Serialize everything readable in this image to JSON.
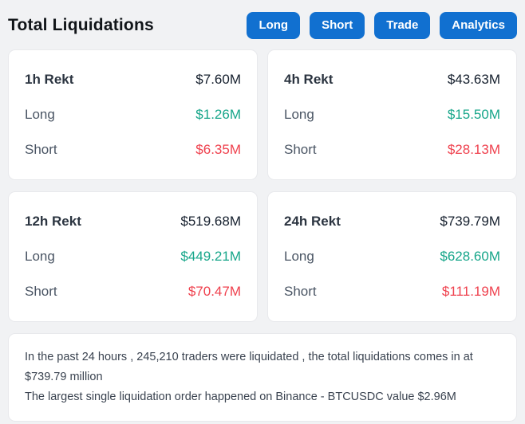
{
  "header": {
    "title": "Total Liquidations",
    "buttons": [
      {
        "label": "Long"
      },
      {
        "label": "Short"
      },
      {
        "label": "Trade"
      },
      {
        "label": "Analytics"
      }
    ]
  },
  "labels": {
    "long": "Long",
    "short": "Short"
  },
  "cards": [
    {
      "period": "1h Rekt",
      "total": "$7.60M",
      "long_value": "$1.26M",
      "short_value": "$6.35M"
    },
    {
      "period": "4h Rekt",
      "total": "$43.63M",
      "long_value": "$15.50M",
      "short_value": "$28.13M"
    },
    {
      "period": "12h Rekt",
      "total": "$519.68M",
      "long_value": "$449.21M",
      "short_value": "$70.47M"
    },
    {
      "period": "24h Rekt",
      "total": "$739.79M",
      "long_value": "$628.60M",
      "short_value": "$111.19M"
    }
  ],
  "summary": {
    "line1": "In the past 24 hours , 245,210 traders were liquidated , the total liquidations comes in at $739.79 million",
    "line2": "The largest single liquidation order happened on Binance - BTCUSDC value $2.96M"
  },
  "colors": {
    "accent_blue": "#1170d0",
    "long_green": "#17a68a",
    "short_red": "#ef414e"
  }
}
